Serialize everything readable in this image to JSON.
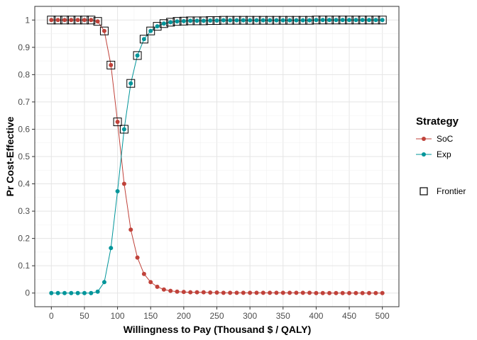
{
  "chart_data": {
    "type": "line",
    "xlabel": "Willingness to Pay (Thousand $ / QALY)",
    "ylabel": "Pr Cost-Effective",
    "xlim": [
      0,
      500
    ],
    "ylim": [
      0,
      1
    ],
    "x_ticks": [
      0,
      50,
      100,
      150,
      200,
      250,
      300,
      350,
      400,
      450,
      500
    ],
    "y_ticks": [
      0,
      0.1,
      0.2,
      0.3,
      0.4,
      0.5,
      0.6,
      0.7,
      0.8,
      0.9,
      1
    ],
    "y_tick_labels": [
      "0",
      "0.1",
      "0.2",
      "0.3",
      "0.4",
      "0.5",
      "0.6",
      "0.7",
      "0.8",
      "0.9",
      "1"
    ],
    "grid": true,
    "legend_position": "right",
    "x": [
      0,
      10,
      20,
      30,
      40,
      50,
      60,
      70,
      80,
      90,
      100,
      110,
      120,
      130,
      140,
      150,
      160,
      170,
      180,
      190,
      200,
      210,
      220,
      230,
      240,
      250,
      260,
      270,
      280,
      290,
      300,
      310,
      320,
      330,
      340,
      350,
      360,
      370,
      380,
      390,
      400,
      410,
      420,
      430,
      440,
      450,
      460,
      470,
      480,
      490,
      500
    ],
    "series": [
      {
        "name": "SoC",
        "color": "#c0423a",
        "values": [
          1,
          1,
          1,
          1,
          1,
          1,
          1,
          0.995,
          0.96,
          0.835,
          0.627,
          0.4,
          0.232,
          0.13,
          0.07,
          0.04,
          0.023,
          0.013,
          0.008,
          0.005,
          0.004,
          0.003,
          0.003,
          0.003,
          0.002,
          0.002,
          0.001,
          0.001,
          0.001,
          0.001,
          0.001,
          0.001,
          0.001,
          0.001,
          0.001,
          0.001,
          0.001,
          0.001,
          0.001,
          0.001,
          0,
          0,
          0,
          0,
          0,
          0,
          0,
          0,
          0,
          0,
          0
        ]
      },
      {
        "name": "Exp",
        "color": "#00959a",
        "values": [
          0,
          0,
          0,
          0,
          0,
          0,
          0,
          0.005,
          0.04,
          0.165,
          0.373,
          0.6,
          0.768,
          0.87,
          0.93,
          0.96,
          0.977,
          0.987,
          0.992,
          0.995,
          0.996,
          0.997,
          0.997,
          0.997,
          0.998,
          0.998,
          0.999,
          0.999,
          0.999,
          0.999,
          0.999,
          0.999,
          0.999,
          0.999,
          0.999,
          0.999,
          0.999,
          0.999,
          0.999,
          0.999,
          1,
          1,
          1,
          1,
          1,
          1,
          1,
          1,
          1,
          1,
          1
        ]
      }
    ],
    "frontier": {
      "name": "Frontier",
      "x": [
        0,
        10,
        20,
        30,
        40,
        50,
        60,
        70,
        80,
        90,
        100,
        110,
        120,
        130,
        140,
        150,
        160,
        170,
        180,
        190,
        200,
        210,
        220,
        230,
        240,
        250,
        260,
        270,
        280,
        290,
        300,
        310,
        320,
        330,
        340,
        350,
        360,
        370,
        380,
        390,
        400,
        410,
        420,
        430,
        440,
        450,
        460,
        470,
        480,
        490,
        500
      ],
      "y": [
        1,
        1,
        1,
        1,
        1,
        1,
        1,
        0.995,
        0.96,
        0.835,
        0.627,
        0.6,
        0.768,
        0.87,
        0.93,
        0.96,
        0.977,
        0.987,
        0.992,
        0.995,
        0.996,
        0.997,
        0.997,
        0.997,
        0.998,
        0.998,
        0.999,
        0.999,
        0.999,
        0.999,
        0.999,
        0.999,
        0.999,
        0.999,
        0.999,
        0.999,
        0.999,
        0.999,
        0.999,
        0.999,
        1,
        1,
        1,
        1,
        1,
        1,
        1,
        1,
        1,
        1,
        1
      ]
    },
    "legend": {
      "title": "Strategy",
      "items": [
        "SoC",
        "Exp"
      ],
      "frontier_label": "Frontier"
    }
  }
}
